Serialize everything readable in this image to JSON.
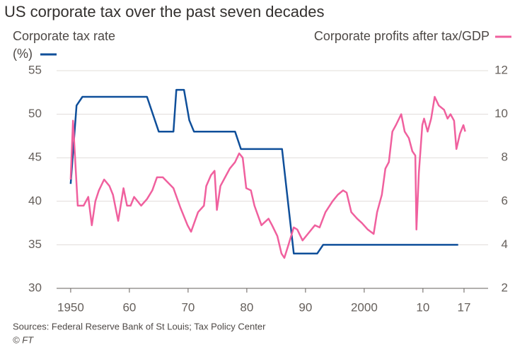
{
  "chart_data": {
    "type": "line",
    "title": "US corporate tax over the past seven decades",
    "y_unit": "(%)",
    "source": "Sources: Federal Reserve Bank of St Louis; Tax Policy Center",
    "credit": "© FT",
    "xlim": [
      1947.6,
      2021.1
    ],
    "xticks": [
      1950,
      {
        "value": 1960,
        "label": "60"
      },
      {
        "value": 1970,
        "label": "70"
      },
      {
        "value": 1980,
        "label": "80"
      },
      {
        "value": 1990,
        "label": "90"
      },
      2000,
      {
        "value": 2010,
        "label": "10"
      },
      {
        "value": 2017,
        "label": "17"
      }
    ],
    "ylim": [
      30,
      55
    ],
    "yticks": [
      30,
      35,
      40,
      45,
      50,
      55
    ],
    "y2lim": [
      2,
      12
    ],
    "y2ticks": [
      2,
      4,
      6,
      8,
      10,
      12
    ],
    "grid": true,
    "series": [
      {
        "name": "Corporate tax rate",
        "color": "#0f4f9a",
        "x": [
          1950,
          1951,
          1952,
          1963,
          1965,
          1967.5,
          1968,
          1969.3,
          1970.2,
          1971,
          1978,
          1979,
          1986,
          1987,
          1988,
          1992,
          1993,
          2016
        ],
        "values": [
          42,
          51,
          52,
          52,
          48,
          48,
          52.8,
          52.8,
          49.3,
          48,
          48,
          46,
          46,
          40,
          34,
          34,
          35,
          35
        ]
      },
      {
        "name": "Corporate profits after tax/GDP",
        "color": "#f0609e",
        "axis": "y2",
        "x": [
          1950.0,
          1950.4,
          1951.2,
          1952.2,
          1953.0,
          1953.6,
          1954.2,
          1954.8,
          1955.7,
          1956.6,
          1957.2,
          1958.1,
          1959.0,
          1959.6,
          1960.2,
          1960.8,
          1962.0,
          1963.0,
          1963.9,
          1964.7,
          1965.7,
          1967.5,
          1968.7,
          1969.9,
          1970.5,
          1971.7,
          1972.7,
          1973.1,
          1973.9,
          1974.5,
          1974.9,
          1975.5,
          1976.3,
          1977.1,
          1978.0,
          1978.7,
          1979.3,
          1979.9,
          1980.7,
          1981.3,
          1982.5,
          1983.7,
          1984.3,
          1985.2,
          1985.9,
          1986.4,
          1987.1,
          1988.0,
          1988.6,
          1989.5,
          1990.4,
          1991.6,
          1992.4,
          1993.4,
          1994.6,
          1995.5,
          1996.4,
          1997.0,
          1997.8,
          1998.8,
          1999.6,
          2000.6,
          2001.6,
          2002.2,
          2003.0,
          2003.6,
          2004.2,
          2004.8,
          2005.4,
          2006.3,
          2006.9,
          2007.6,
          2008.2,
          2008.7,
          2008.9,
          2009.3,
          2009.9,
          2010.2,
          2010.8,
          2011.4,
          2012.0,
          2012.7,
          2013.6,
          2014.2,
          2014.7,
          2015.3,
          2015.7,
          2016.3,
          2016.9,
          2017.2
        ],
        "values": [
          7.0,
          9.7,
          5.8,
          5.8,
          6.2,
          4.9,
          6.0,
          6.5,
          7.0,
          6.7,
          6.3,
          5.1,
          6.6,
          5.8,
          5.8,
          6.2,
          5.8,
          6.1,
          6.5,
          7.1,
          7.1,
          6.6,
          5.7,
          4.9,
          4.6,
          5.5,
          5.8,
          6.7,
          7.2,
          7.4,
          5.6,
          6.7,
          7.1,
          7.5,
          7.8,
          8.2,
          8.0,
          6.6,
          6.5,
          5.8,
          4.9,
          5.2,
          4.9,
          4.4,
          3.6,
          3.4,
          4.0,
          4.8,
          4.7,
          4.2,
          4.5,
          4.9,
          4.8,
          5.5,
          6.0,
          6.3,
          6.5,
          6.4,
          5.5,
          5.2,
          5.0,
          4.7,
          4.5,
          5.5,
          6.3,
          7.5,
          7.8,
          9.2,
          9.5,
          10.0,
          9.2,
          8.9,
          8.3,
          8.1,
          4.7,
          7.3,
          9.5,
          9.8,
          9.2,
          9.8,
          10.8,
          10.4,
          10.2,
          9.8,
          10.0,
          9.7,
          8.4,
          9.1,
          9.5,
          9.2
        ]
      }
    ]
  }
}
